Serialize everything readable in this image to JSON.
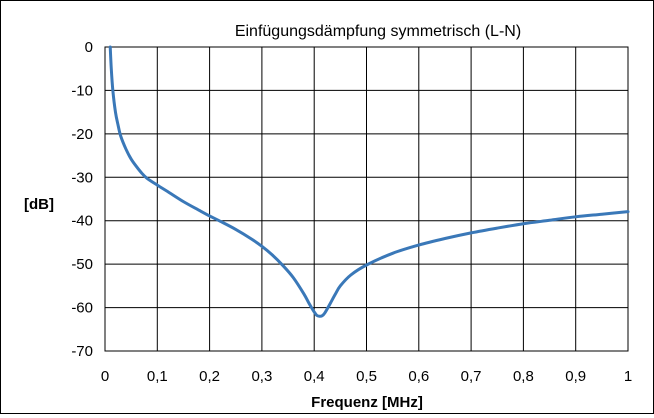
{
  "chart_data": {
    "type": "line",
    "title": "Einfügungsdämpfung symmetrisch (L-N)",
    "xlabel": "Frequenz [MHz]",
    "ylabel": "[dB]",
    "xlim": [
      0,
      1
    ],
    "ylim": [
      -70,
      0
    ],
    "x_ticks": [
      "0",
      "0,1",
      "0,2",
      "0,3",
      "0,4",
      "0,5",
      "0,6",
      "0,7",
      "0,8",
      "0,9",
      "1"
    ],
    "y_ticks": [
      "0",
      "-10",
      "-20",
      "-30",
      "-40",
      "-50",
      "-60",
      "-70"
    ],
    "grid": true,
    "legend": "none",
    "series": [
      {
        "color": "#3a78b8",
        "x": [
          0.01,
          0.012,
          0.015,
          0.02,
          0.025,
          0.03,
          0.04,
          0.05,
          0.06,
          0.07,
          0.08,
          0.1,
          0.12,
          0.15,
          0.18,
          0.2,
          0.22,
          0.25,
          0.28,
          0.3,
          0.32,
          0.34,
          0.36,
          0.38,
          0.39,
          0.4,
          0.405,
          0.41,
          0.415,
          0.42,
          0.43,
          0.44,
          0.45,
          0.47,
          0.5,
          0.55,
          0.6,
          0.65,
          0.7,
          0.75,
          0.8,
          0.85,
          0.9,
          0.95,
          1.0
        ],
        "y": [
          0,
          -5,
          -10,
          -15,
          -18,
          -20.5,
          -23.5,
          -25.8,
          -27.5,
          -29,
          -30.2,
          -31.8,
          -33.3,
          -35.6,
          -37.6,
          -38.9,
          -40.1,
          -42,
          -44.2,
          -45.9,
          -47.9,
          -50.3,
          -53.1,
          -56.8,
          -59,
          -61,
          -61.8,
          -62,
          -61.9,
          -61.3,
          -59.2,
          -57,
          -55,
          -52.5,
          -50.2,
          -47.5,
          -45.6,
          -44.1,
          -42.8,
          -41.7,
          -40.7,
          -39.9,
          -39.1,
          -38.5,
          -37.9
        ]
      }
    ]
  }
}
